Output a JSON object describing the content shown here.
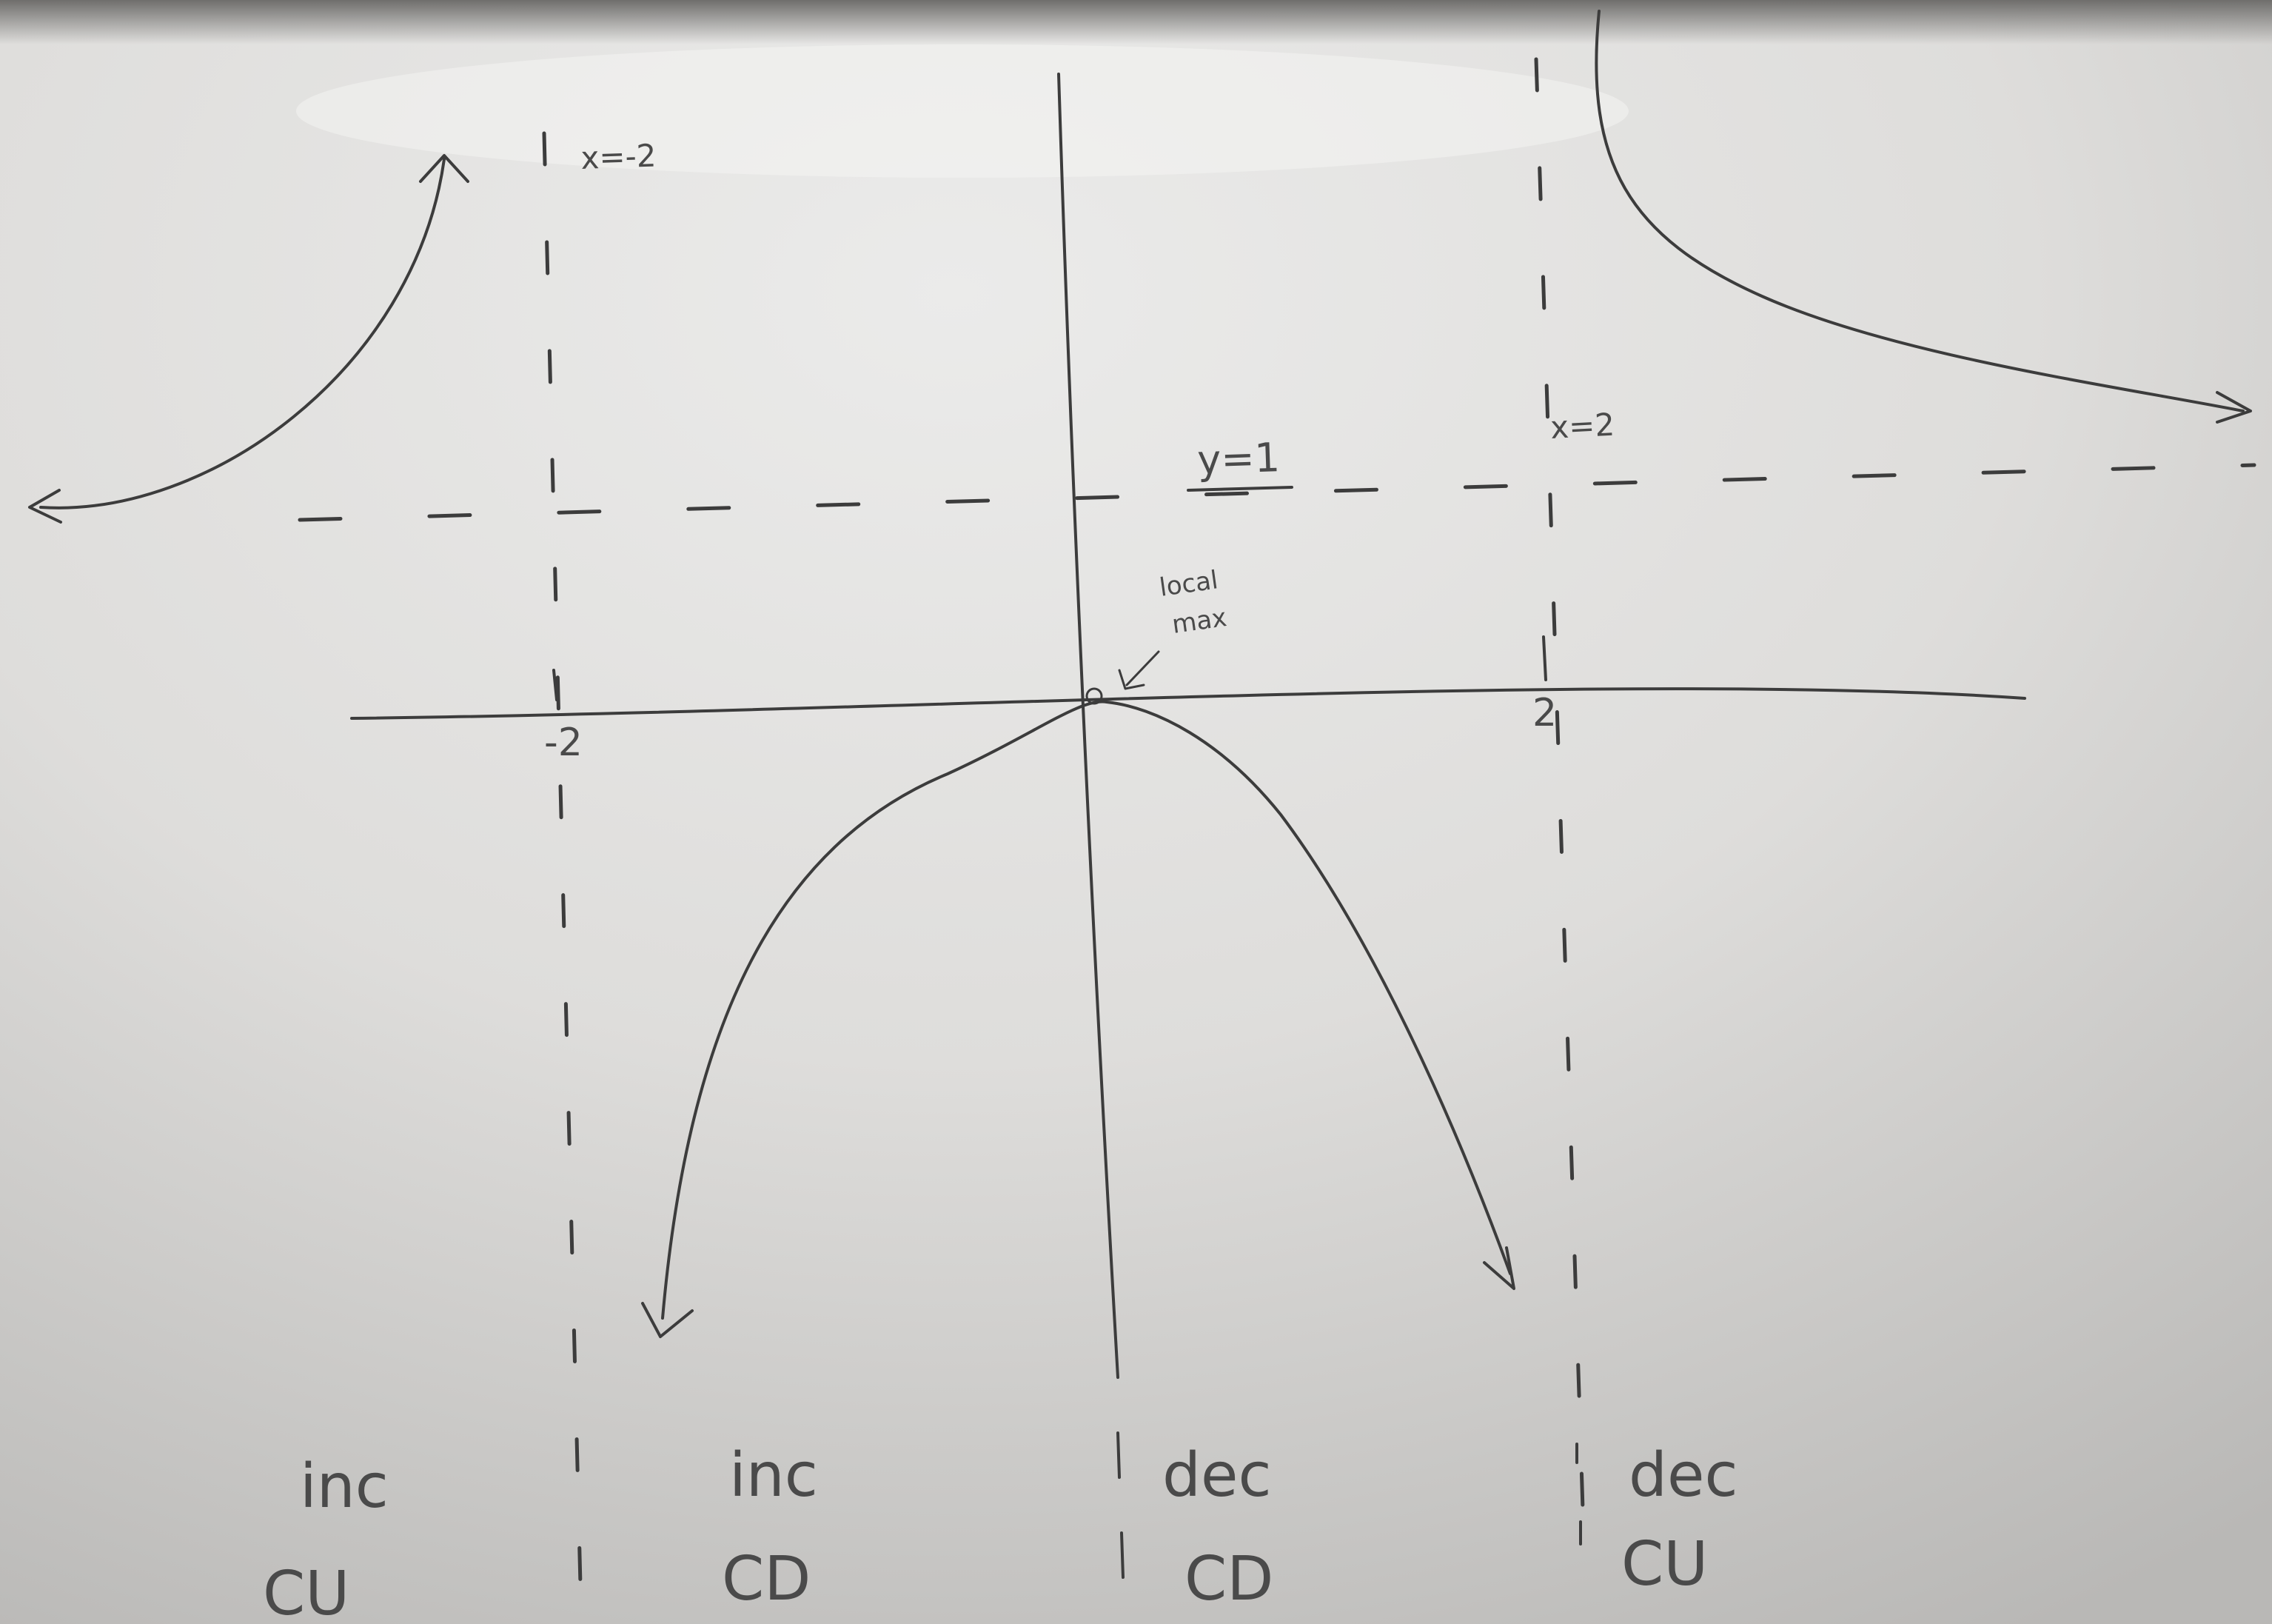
{
  "board": {
    "asymptote_left_label": "x=-2",
    "asymptote_right_label": "x=2",
    "horizontal_asymptote_label": "y=1",
    "tick_left_label": "-2",
    "tick_right_label": "2",
    "annotation_line1": "local",
    "annotation_line2": "max",
    "intervals": [
      {
        "trend": "inc",
        "concavity": "CU"
      },
      {
        "trend": "inc",
        "concavity": "CD"
      },
      {
        "trend": "dec",
        "concavity": "CD"
      },
      {
        "trend": "dec",
        "concavity": "CU"
      }
    ],
    "colors": {
      "board_light": "#e6e6e4",
      "board_shadow": "#b9b8b6",
      "ink": "#3c3c3c"
    }
  }
}
